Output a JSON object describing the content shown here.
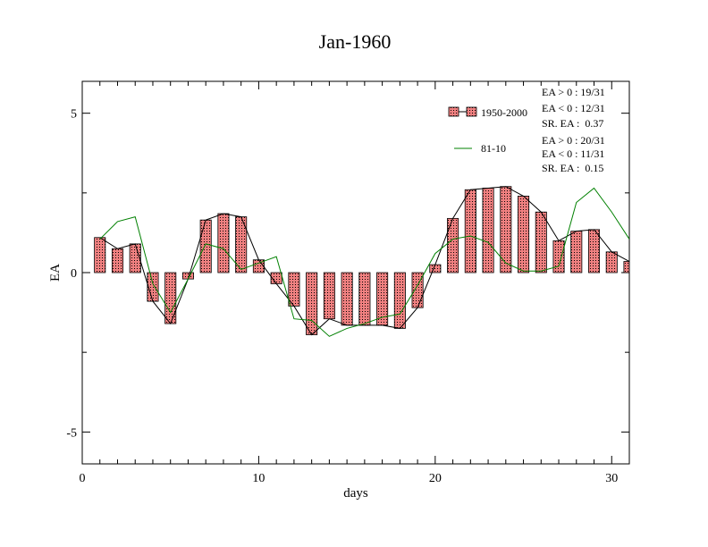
{
  "chart_data": {
    "type": "bar",
    "title": "Jan-1960",
    "xlabel": "days",
    "ylabel": "EA",
    "xlim": [
      0,
      31
    ],
    "ylim": [
      -6,
      6
    ],
    "x_ticks": [
      "0",
      "10",
      "20",
      "30"
    ],
    "y_ticks": [
      "5",
      "0",
      "-5"
    ],
    "x": [
      1,
      2,
      3,
      4,
      5,
      6,
      7,
      8,
      9,
      10,
      11,
      12,
      13,
      14,
      15,
      16,
      17,
      18,
      19,
      20,
      21,
      22,
      23,
      24,
      25,
      26,
      27,
      28,
      29,
      30,
      31
    ],
    "series": [
      {
        "name": "1950-2000",
        "kind": "bar+line",
        "color": "#f08080",
        "line_color": "#000000",
        "values": [
          1.1,
          0.75,
          0.9,
          -0.9,
          -1.6,
          -0.2,
          1.65,
          1.85,
          1.75,
          0.4,
          -0.35,
          -1.05,
          -1.95,
          -1.45,
          -1.65,
          -1.65,
          -1.65,
          -1.75,
          -1.1,
          0.25,
          1.7,
          2.6,
          2.65,
          2.7,
          2.4,
          1.9,
          1.0,
          1.3,
          1.35,
          0.65,
          0.35
        ]
      },
      {
        "name": "81-10",
        "kind": "line",
        "color": "#008000",
        "values": [
          1.05,
          1.6,
          1.75,
          -0.35,
          -1.25,
          -0.2,
          0.9,
          0.75,
          0.1,
          0.3,
          0.5,
          -1.45,
          -1.5,
          -2.0,
          -1.75,
          -1.6,
          -1.4,
          -1.3,
          -0.4,
          0.6,
          1.05,
          1.15,
          0.95,
          0.3,
          0.05,
          0.05,
          0.2,
          2.2,
          2.65,
          1.9,
          1.05
        ]
      }
    ],
    "legend": {
      "placement": "top-right",
      "stats_1": [
        "EA > 0 : 19/31",
        "EA < 0 : 12/31",
        "SR. EA :  0.37"
      ],
      "stats_2": [
        "EA > 0 : 20/31",
        "EA < 0 : 11/31",
        "SR. EA :  0.15"
      ]
    },
    "grid": false
  }
}
